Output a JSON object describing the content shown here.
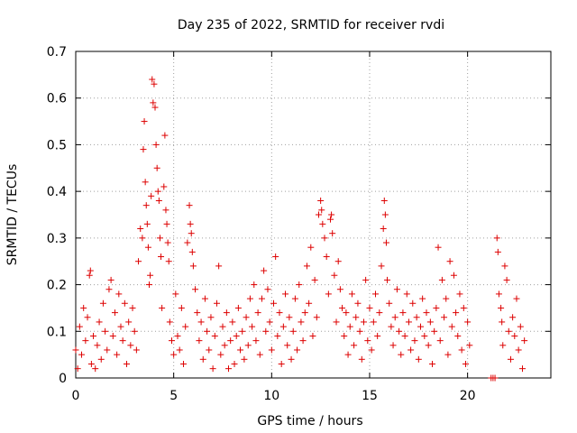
{
  "chart_data": {
    "type": "scatter",
    "title": "Day 235 of 2022, SRMTID for receiver rvdi",
    "xlabel": "GPS time / hours",
    "ylabel": "SRMTID / TECUs",
    "xlim": [
      0,
      24.25
    ],
    "ylim": [
      0,
      0.7
    ],
    "xticks": [
      0,
      5,
      10,
      15,
      20
    ],
    "yticks": [
      0,
      0.1,
      0.2,
      0.3,
      0.4,
      0.5,
      0.6,
      0.7
    ],
    "ytick_labels": [
      "0",
      "0.1",
      "0.2",
      "0.3",
      "0.4",
      "0.5",
      "0.6",
      "0.7"
    ],
    "grid": true,
    "marker": "+",
    "series": [
      {
        "name": "SRMTID",
        "color": "#dd0000",
        "points": [
          [
            0.0,
            0.06
          ],
          [
            0.1,
            0.02
          ],
          [
            0.2,
            0.11
          ],
          [
            0.3,
            0.05
          ],
          [
            0.4,
            0.15
          ],
          [
            0.5,
            0.08
          ],
          [
            0.6,
            0.13
          ],
          [
            0.7,
            0.22
          ],
          [
            0.75,
            0.23
          ],
          [
            0.8,
            0.03
          ],
          [
            0.9,
            0.09
          ],
          [
            1.0,
            0.02
          ],
          [
            1.1,
            0.07
          ],
          [
            1.2,
            0.12
          ],
          [
            1.3,
            0.04
          ],
          [
            1.4,
            0.16
          ],
          [
            1.5,
            0.1
          ],
          [
            1.6,
            0.06
          ],
          [
            1.7,
            0.19
          ],
          [
            1.8,
            0.21
          ],
          [
            1.9,
            0.09
          ],
          [
            2.0,
            0.14
          ],
          [
            2.1,
            0.05
          ],
          [
            2.2,
            0.18
          ],
          [
            2.3,
            0.11
          ],
          [
            2.4,
            0.08
          ],
          [
            2.5,
            0.16
          ],
          [
            2.6,
            0.03
          ],
          [
            2.7,
            0.12
          ],
          [
            2.8,
            0.07
          ],
          [
            2.9,
            0.15
          ],
          [
            3.0,
            0.1
          ],
          [
            3.1,
            0.06
          ],
          [
            3.2,
            0.25
          ],
          [
            3.3,
            0.32
          ],
          [
            3.4,
            0.3
          ],
          [
            3.45,
            0.49
          ],
          [
            3.5,
            0.55
          ],
          [
            3.55,
            0.42
          ],
          [
            3.6,
            0.37
          ],
          [
            3.65,
            0.33
          ],
          [
            3.7,
            0.28
          ],
          [
            3.75,
            0.2
          ],
          [
            3.8,
            0.22
          ],
          [
            3.85,
            0.39
          ],
          [
            3.9,
            0.64
          ],
          [
            3.95,
            0.59
          ],
          [
            4.0,
            0.63
          ],
          [
            4.05,
            0.58
          ],
          [
            4.1,
            0.5
          ],
          [
            4.15,
            0.45
          ],
          [
            4.2,
            0.4
          ],
          [
            4.25,
            0.38
          ],
          [
            4.3,
            0.3
          ],
          [
            4.35,
            0.26
          ],
          [
            4.4,
            0.15
          ],
          [
            4.5,
            0.41
          ],
          [
            4.55,
            0.52
          ],
          [
            4.6,
            0.36
          ],
          [
            4.65,
            0.33
          ],
          [
            4.7,
            0.29
          ],
          [
            4.75,
            0.25
          ],
          [
            4.8,
            0.12
          ],
          [
            4.9,
            0.08
          ],
          [
            5.0,
            0.05
          ],
          [
            5.1,
            0.18
          ],
          [
            5.2,
            0.09
          ],
          [
            5.3,
            0.06
          ],
          [
            5.4,
            0.15
          ],
          [
            5.5,
            0.03
          ],
          [
            5.6,
            0.11
          ],
          [
            5.7,
            0.29
          ],
          [
            5.8,
            0.37
          ],
          [
            5.85,
            0.33
          ],
          [
            5.9,
            0.31
          ],
          [
            5.95,
            0.27
          ],
          [
            6.0,
            0.24
          ],
          [
            6.1,
            0.19
          ],
          [
            6.2,
            0.14
          ],
          [
            6.3,
            0.08
          ],
          [
            6.4,
            0.12
          ],
          [
            6.5,
            0.04
          ],
          [
            6.6,
            0.17
          ],
          [
            6.7,
            0.1
          ],
          [
            6.8,
            0.06
          ],
          [
            6.9,
            0.13
          ],
          [
            7.0,
            0.02
          ],
          [
            7.1,
            0.09
          ],
          [
            7.2,
            0.16
          ],
          [
            7.3,
            0.24
          ],
          [
            7.4,
            0.05
          ],
          [
            7.5,
            0.11
          ],
          [
            7.6,
            0.07
          ],
          [
            7.7,
            0.14
          ],
          [
            7.8,
            0.02
          ],
          [
            7.9,
            0.08
          ],
          [
            8.0,
            0.12
          ],
          [
            8.1,
            0.03
          ],
          [
            8.2,
            0.09
          ],
          [
            8.3,
            0.15
          ],
          [
            8.4,
            0.06
          ],
          [
            8.5,
            0.1
          ],
          [
            8.6,
            0.04
          ],
          [
            8.7,
            0.13
          ],
          [
            8.8,
            0.07
          ],
          [
            8.9,
            0.17
          ],
          [
            9.0,
            0.11
          ],
          [
            9.1,
            0.2
          ],
          [
            9.2,
            0.08
          ],
          [
            9.3,
            0.14
          ],
          [
            9.4,
            0.05
          ],
          [
            9.5,
            0.17
          ],
          [
            9.6,
            0.23
          ],
          [
            9.7,
            0.1
          ],
          [
            9.8,
            0.19
          ],
          [
            9.9,
            0.12
          ],
          [
            10.0,
            0.06
          ],
          [
            10.1,
            0.16
          ],
          [
            10.2,
            0.26
          ],
          [
            10.3,
            0.09
          ],
          [
            10.4,
            0.14
          ],
          [
            10.5,
            0.03
          ],
          [
            10.6,
            0.11
          ],
          [
            10.7,
            0.18
          ],
          [
            10.8,
            0.07
          ],
          [
            10.9,
            0.13
          ],
          [
            11.0,
            0.04
          ],
          [
            11.1,
            0.1
          ],
          [
            11.2,
            0.17
          ],
          [
            11.3,
            0.06
          ],
          [
            11.4,
            0.2
          ],
          [
            11.5,
            0.12
          ],
          [
            11.6,
            0.08
          ],
          [
            11.7,
            0.14
          ],
          [
            11.8,
            0.24
          ],
          [
            11.9,
            0.16
          ],
          [
            12.0,
            0.28
          ],
          [
            12.1,
            0.09
          ],
          [
            12.2,
            0.21
          ],
          [
            12.3,
            0.13
          ],
          [
            12.4,
            0.35
          ],
          [
            12.5,
            0.38
          ],
          [
            12.55,
            0.36
          ],
          [
            12.6,
            0.33
          ],
          [
            12.7,
            0.3
          ],
          [
            12.8,
            0.26
          ],
          [
            12.9,
            0.18
          ],
          [
            13.0,
            0.34
          ],
          [
            13.05,
            0.35
          ],
          [
            13.1,
            0.31
          ],
          [
            13.2,
            0.22
          ],
          [
            13.3,
            0.12
          ],
          [
            13.4,
            0.25
          ],
          [
            13.5,
            0.19
          ],
          [
            13.6,
            0.15
          ],
          [
            13.7,
            0.09
          ],
          [
            13.8,
            0.14
          ],
          [
            13.9,
            0.05
          ],
          [
            14.0,
            0.11
          ],
          [
            14.1,
            0.18
          ],
          [
            14.2,
            0.07
          ],
          [
            14.3,
            0.13
          ],
          [
            14.4,
            0.16
          ],
          [
            14.5,
            0.1
          ],
          [
            14.6,
            0.04
          ],
          [
            14.7,
            0.12
          ],
          [
            14.8,
            0.21
          ],
          [
            14.9,
            0.08
          ],
          [
            15.0,
            0.15
          ],
          [
            15.1,
            0.06
          ],
          [
            15.2,
            0.12
          ],
          [
            15.3,
            0.18
          ],
          [
            15.4,
            0.09
          ],
          [
            15.5,
            0.14
          ],
          [
            15.6,
            0.24
          ],
          [
            15.7,
            0.32
          ],
          [
            15.75,
            0.38
          ],
          [
            15.8,
            0.35
          ],
          [
            15.85,
            0.29
          ],
          [
            15.9,
            0.21
          ],
          [
            16.0,
            0.16
          ],
          [
            16.1,
            0.11
          ],
          [
            16.2,
            0.07
          ],
          [
            16.3,
            0.13
          ],
          [
            16.4,
            0.19
          ],
          [
            16.5,
            0.1
          ],
          [
            16.6,
            0.05
          ],
          [
            16.7,
            0.14
          ],
          [
            16.8,
            0.09
          ],
          [
            16.9,
            0.18
          ],
          [
            17.0,
            0.12
          ],
          [
            17.1,
            0.06
          ],
          [
            17.2,
            0.16
          ],
          [
            17.3,
            0.08
          ],
          [
            17.4,
            0.13
          ],
          [
            17.5,
            0.04
          ],
          [
            17.6,
            0.11
          ],
          [
            17.7,
            0.17
          ],
          [
            17.8,
            0.09
          ],
          [
            17.9,
            0.14
          ],
          [
            18.0,
            0.07
          ],
          [
            18.1,
            0.12
          ],
          [
            18.2,
            0.03
          ],
          [
            18.3,
            0.1
          ],
          [
            18.4,
            0.15
          ],
          [
            18.5,
            0.28
          ],
          [
            18.6,
            0.08
          ],
          [
            18.7,
            0.21
          ],
          [
            18.8,
            0.13
          ],
          [
            18.9,
            0.17
          ],
          [
            19.0,
            0.05
          ],
          [
            19.1,
            0.25
          ],
          [
            19.2,
            0.11
          ],
          [
            19.3,
            0.22
          ],
          [
            19.4,
            0.14
          ],
          [
            19.5,
            0.09
          ],
          [
            19.6,
            0.18
          ],
          [
            19.7,
            0.06
          ],
          [
            19.8,
            0.15
          ],
          [
            19.9,
            0.03
          ],
          [
            20.0,
            0.12
          ],
          [
            20.1,
            0.07
          ],
          [
            21.2,
            0.0
          ],
          [
            21.3,
            0.0
          ],
          [
            21.4,
            0.0
          ],
          [
            21.5,
            0.3
          ],
          [
            21.55,
            0.27
          ],
          [
            21.6,
            0.18
          ],
          [
            21.7,
            0.15
          ],
          [
            21.75,
            0.12
          ],
          [
            21.8,
            0.07
          ],
          [
            21.9,
            0.24
          ],
          [
            22.0,
            0.21
          ],
          [
            22.1,
            0.1
          ],
          [
            22.2,
            0.04
          ],
          [
            22.3,
            0.13
          ],
          [
            22.4,
            0.09
          ],
          [
            22.5,
            0.17
          ],
          [
            22.6,
            0.06
          ],
          [
            22.7,
            0.11
          ],
          [
            22.8,
            0.02
          ],
          [
            22.9,
            0.08
          ]
        ]
      }
    ]
  }
}
